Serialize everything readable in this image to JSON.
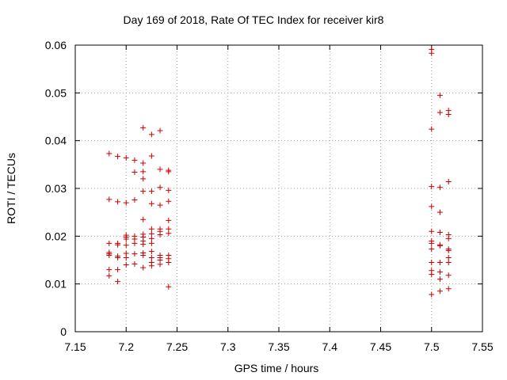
{
  "chart_data": {
    "type": "scatter",
    "title": "Day 169 of 2018, Rate Of TEC Index for receiver kir8",
    "xlabel": "GPS time / hours",
    "ylabel": "ROTI / TECUs",
    "xlim": [
      7.15,
      7.55
    ],
    "ylim": [
      0,
      0.06
    ],
    "xticks": [
      "7.15",
      "7.2",
      "7.25",
      "7.3",
      "7.35",
      "7.4",
      "7.45",
      "7.5",
      "7.55"
    ],
    "yticks": [
      "0",
      "0.01",
      "0.02",
      "0.03",
      "0.04",
      "0.05",
      "0.06"
    ],
    "xtick_values": [
      7.15,
      7.2,
      7.25,
      7.3,
      7.35,
      7.4,
      7.45,
      7.5,
      7.55
    ],
    "ytick_values": [
      0,
      0.01,
      0.02,
      0.03,
      0.04,
      0.05,
      0.06
    ],
    "grid": true,
    "marker": "+",
    "color": "#cc0000",
    "series": [
      {
        "name": "ROTI",
        "points": [
          [
            7.1833,
            0.0373
          ],
          [
            7.1833,
            0.0277
          ],
          [
            7.1833,
            0.0185
          ],
          [
            7.1833,
            0.0166
          ],
          [
            7.1833,
            0.0163
          ],
          [
            7.1833,
            0.016
          ],
          [
            7.1833,
            0.013
          ],
          [
            7.1833,
            0.0117
          ],
          [
            7.1917,
            0.0367
          ],
          [
            7.1917,
            0.0272
          ],
          [
            7.1917,
            0.0185
          ],
          [
            7.1917,
            0.0182
          ],
          [
            7.1917,
            0.0158
          ],
          [
            7.1917,
            0.0155
          ],
          [
            7.1917,
            0.013
          ],
          [
            7.1917,
            0.0105
          ],
          [
            7.2,
            0.0364
          ],
          [
            7.2,
            0.027
          ],
          [
            7.2,
            0.0202
          ],
          [
            7.2,
            0.0198
          ],
          [
            7.2,
            0.0194
          ],
          [
            7.2,
            0.0181
          ],
          [
            7.2,
            0.0164
          ],
          [
            7.2,
            0.0155
          ],
          [
            7.2,
            0.014
          ],
          [
            7.2083,
            0.0359
          ],
          [
            7.2083,
            0.0334
          ],
          [
            7.2083,
            0.0276
          ],
          [
            7.2083,
            0.02
          ],
          [
            7.2083,
            0.0194
          ],
          [
            7.2083,
            0.0185
          ],
          [
            7.2083,
            0.0163
          ],
          [
            7.2083,
            0.0142
          ],
          [
            7.2167,
            0.0427
          ],
          [
            7.2167,
            0.0353
          ],
          [
            7.2167,
            0.0335
          ],
          [
            7.2167,
            0.032
          ],
          [
            7.2167,
            0.0294
          ],
          [
            7.2167,
            0.0235
          ],
          [
            7.2167,
            0.0204
          ],
          [
            7.2167,
            0.0198
          ],
          [
            7.2167,
            0.019
          ],
          [
            7.2167,
            0.0183
          ],
          [
            7.2167,
            0.0165
          ],
          [
            7.2167,
            0.016
          ],
          [
            7.2167,
            0.0134
          ],
          [
            7.225,
            0.0413
          ],
          [
            7.225,
            0.0368
          ],
          [
            7.225,
            0.0294
          ],
          [
            7.225,
            0.0268
          ],
          [
            7.225,
            0.0215
          ],
          [
            7.225,
            0.0205
          ],
          [
            7.225,
            0.0195
          ],
          [
            7.225,
            0.0185
          ],
          [
            7.225,
            0.0168
          ],
          [
            7.225,
            0.0155
          ],
          [
            7.225,
            0.0145
          ],
          [
            7.225,
            0.0138
          ],
          [
            7.2333,
            0.0421
          ],
          [
            7.2333,
            0.034
          ],
          [
            7.2333,
            0.0302
          ],
          [
            7.2333,
            0.0265
          ],
          [
            7.2333,
            0.0215
          ],
          [
            7.2333,
            0.021
          ],
          [
            7.2333,
            0.0203
          ],
          [
            7.2333,
            0.016
          ],
          [
            7.2333,
            0.0155
          ],
          [
            7.2333,
            0.015
          ],
          [
            7.2333,
            0.0141
          ],
          [
            7.2417,
            0.0338
          ],
          [
            7.2417,
            0.0335
          ],
          [
            7.2417,
            0.0296
          ],
          [
            7.2417,
            0.0273
          ],
          [
            7.2417,
            0.0233
          ],
          [
            7.2417,
            0.0215
          ],
          [
            7.2417,
            0.0206
          ],
          [
            7.2417,
            0.016
          ],
          [
            7.2417,
            0.0153
          ],
          [
            7.2417,
            0.0145
          ],
          [
            7.2417,
            0.0094
          ],
          [
            7.5,
            0.0591
          ],
          [
            7.5,
            0.0583
          ],
          [
            7.5,
            0.0424
          ],
          [
            7.5,
            0.0304
          ],
          [
            7.5,
            0.0262
          ],
          [
            7.5,
            0.021
          ],
          [
            7.5,
            0.019
          ],
          [
            7.5,
            0.0185
          ],
          [
            7.5,
            0.0173
          ],
          [
            7.5,
            0.0145
          ],
          [
            7.5,
            0.0128
          ],
          [
            7.5,
            0.012
          ],
          [
            7.5,
            0.0078
          ],
          [
            7.5083,
            0.0495
          ],
          [
            7.5083,
            0.0459
          ],
          [
            7.5083,
            0.0302
          ],
          [
            7.5083,
            0.025
          ],
          [
            7.5083,
            0.0208
          ],
          [
            7.5083,
            0.0182
          ],
          [
            7.5083,
            0.018
          ],
          [
            7.5083,
            0.0145
          ],
          [
            7.5083,
            0.0125
          ],
          [
            7.5083,
            0.011
          ],
          [
            7.5083,
            0.0085
          ],
          [
            7.5167,
            0.0463
          ],
          [
            7.5167,
            0.0455
          ],
          [
            7.5167,
            0.0314
          ],
          [
            7.5167,
            0.0203
          ],
          [
            7.5167,
            0.0195
          ],
          [
            7.5167,
            0.0173
          ],
          [
            7.5167,
            0.017
          ],
          [
            7.5167,
            0.0155
          ],
          [
            7.5167,
            0.0145
          ],
          [
            7.5167,
            0.0118
          ],
          [
            7.5167,
            0.009
          ]
        ]
      }
    ]
  }
}
